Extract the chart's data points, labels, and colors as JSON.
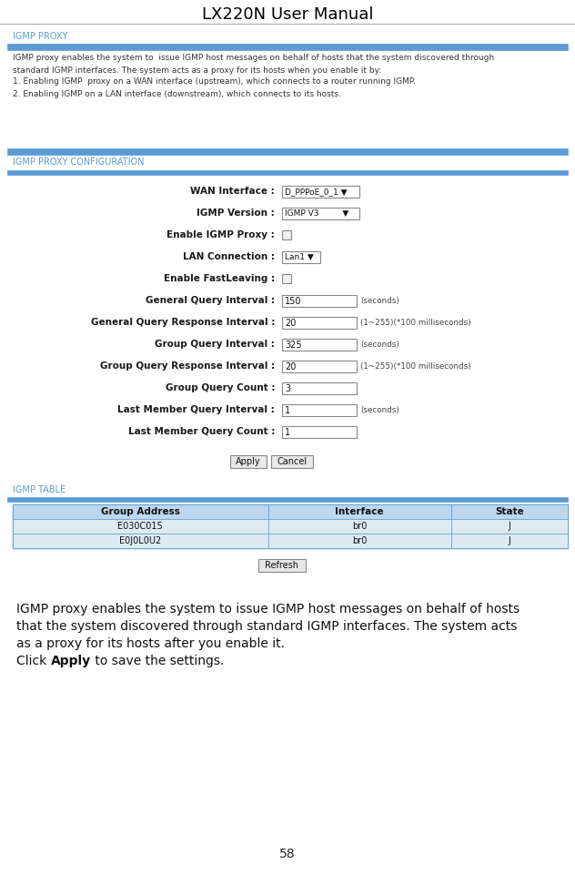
{
  "title": "LX220N User Manual",
  "page_number": "58",
  "bg_color": "#ffffff",
  "title_color": "#000000",
  "section_header_color": "#5b9bd5",
  "section_bar_color": "#5b9bd5",
  "header_bg_color": "#bdd7ee",
  "row_bg_color": "#deeaf1",
  "table_border_color": "#5b9bd5",
  "igmp_proxy_header": "IGMP PROXY",
  "igmp_proxy_text_line1": "IGMP proxy enables the system to  issue IGMP host messages on behalf of hosts that the system discovered through",
  "igmp_proxy_text_line2": "standard IGMP interfaces. The system acts as a proxy for its hosts when you enable it by:",
  "igmp_proxy_text_line3": "1. Enabling IGMP  proxy on a WAN interface (upstream), which connects to a router running IGMP.",
  "igmp_proxy_text_line4": "2. Enabling IGMP on a LAN interface (downstream), which connects to its hosts.",
  "config_header": "IGMP PROXY CONFIGURATION",
  "config_fields": [
    {
      "label": "WAN Interface :",
      "value": "D_PPPoE_0_1 ▼",
      "type": "dropdown",
      "suffix": ""
    },
    {
      "label": "IGMP Version :",
      "value": "IGMP V3         ▼",
      "type": "dropdown",
      "suffix": ""
    },
    {
      "label": "Enable IGMP Proxy :",
      "value": "",
      "type": "checkbox",
      "suffix": ""
    },
    {
      "label": "LAN Connection :",
      "value": "Lan1 ▼",
      "type": "dropdown_small",
      "suffix": ""
    },
    {
      "label": "Enable FastLeaving :",
      "value": "",
      "type": "checkbox",
      "suffix": ""
    },
    {
      "label": "General Query Interval :",
      "value": "150",
      "type": "input",
      "suffix": "(seconds)"
    },
    {
      "label": "General Query Response Interval :",
      "value": "20",
      "type": "input",
      "suffix": "(1~255)(*100 milliseconds)"
    },
    {
      "label": "Group Query Interval :",
      "value": "325",
      "type": "input",
      "suffix": "(seconds)"
    },
    {
      "label": "Group Query Response Interval :",
      "value": "20",
      "type": "input",
      "suffix": "(1~255)(*100 milliseconds)"
    },
    {
      "label": "Group Query Count :",
      "value": "3",
      "type": "input",
      "suffix": ""
    },
    {
      "label": "Last Member Query Interval :",
      "value": "1",
      "type": "input",
      "suffix": "(seconds)"
    },
    {
      "label": "Last Member Query Count :",
      "value": "1",
      "type": "input",
      "suffix": ""
    }
  ],
  "table_header": "IGMP TABLE",
  "table_columns": [
    "Group Address",
    "Interface",
    "State"
  ],
  "table_rows": [
    [
      "E030C015",
      "br0",
      "J"
    ],
    [
      "E0J0L0U2",
      "br0",
      "J"
    ]
  ],
  "bottom_lines": [
    "IGMP proxy enables the system to issue IGMP host messages on behalf of hosts",
    "that the system discovered through standard IGMP interfaces. The system acts",
    "as a proxy for its hosts after you enable it.",
    "Click #Apply# to save the settings."
  ]
}
